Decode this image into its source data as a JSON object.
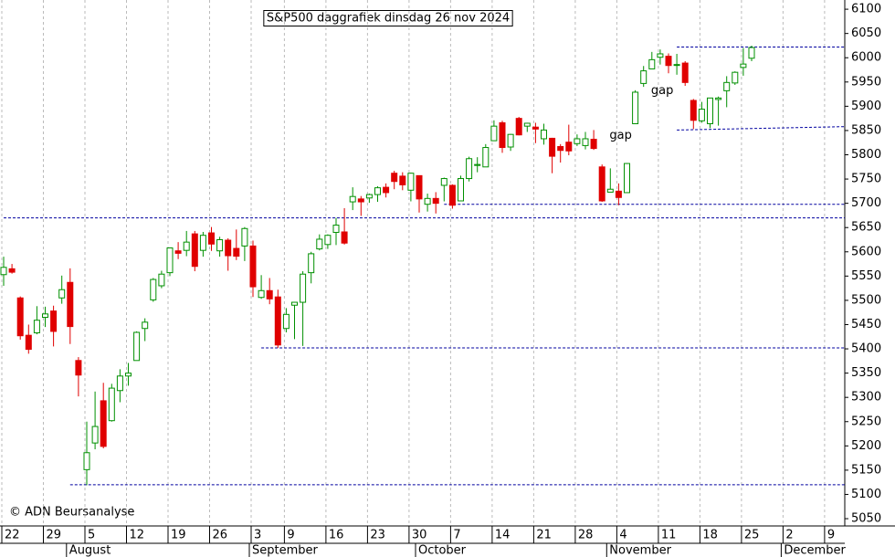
{
  "chart_data": {
    "type": "candlestick",
    "title": "S&P500 daggrafiek dinsdag 26 nov 2024",
    "copyright": "© ADN Beursanalyse",
    "categories": [
      "22",
      null,
      null,
      null,
      null,
      "29",
      null,
      null,
      null,
      null,
      "5",
      null,
      null,
      null,
      null,
      "12",
      null,
      null,
      null,
      null,
      "19",
      null,
      null,
      null,
      null,
      "26",
      null,
      null,
      null,
      null,
      "3",
      null,
      null,
      null,
      "9",
      null,
      null,
      null,
      null,
      "16",
      null,
      null,
      null,
      null,
      "23",
      null,
      null,
      null,
      null,
      "30",
      null,
      null,
      null,
      null,
      "7",
      null,
      null,
      null,
      null,
      "14",
      null,
      null,
      null,
      null,
      "21",
      null,
      null,
      null,
      null,
      "28",
      null,
      null,
      null,
      null,
      "4",
      null,
      null,
      null,
      null,
      "11",
      null,
      null,
      null,
      null,
      "18",
      null,
      null,
      null,
      null,
      "25",
      null,
      null,
      null,
      null,
      "2",
      null,
      null,
      null,
      null,
      "9",
      null,
      null
    ],
    "months": [
      {
        "label": "August",
        "index": 8
      },
      {
        "label": "September",
        "index": 30
      },
      {
        "label": "October",
        "index": 50
      },
      {
        "label": "November",
        "index": 73
      },
      {
        "label": "December",
        "index": 94
      }
    ],
    "open": [
      5553,
      5565,
      5505,
      5428,
      5433,
      5465,
      5478,
      5505,
      5537,
      5376,
      5151,
      5206,
      5293,
      5252,
      5314,
      5344,
      5376,
      5442,
      5501,
      5530,
      5557,
      5602,
      5603,
      5637,
      5603,
      5639,
      5602,
      5624,
      5607,
      5612,
      5612,
      5506,
      5520,
      5507,
      5442,
      5490,
      5496,
      5557,
      5606,
      5615,
      5640,
      5641,
      5703,
      5709,
      5711,
      5718,
      5733,
      5762,
      5756,
      5727,
      5757,
      5698,
      5710,
      5737,
      5737,
      5705,
      5751,
      5778,
      5775,
      5829,
      5866,
      5816,
      5875,
      5859,
      5857,
      5833,
      5834,
      5817,
      5826,
      5823,
      5819,
      5832,
      5775,
      5723,
      5725,
      5722,
      5864,
      5947,
      5977,
      6001,
      6003,
      5985,
      5989,
      5912,
      5870,
      5864,
      5914,
      5932,
      5948,
      5980,
      5999,
      null,
      null,
      null,
      null,
      null,
      null,
      null,
      null,
      null,
      null,
      null
    ],
    "high": [
      5590,
      5575,
      5508,
      5450,
      5488,
      5487,
      5489,
      5551,
      5566,
      5383,
      5250,
      5312,
      5330,
      5328,
      5358,
      5371,
      5436,
      5463,
      5546,
      5561,
      5608,
      5620,
      5643,
      5643,
      5641,
      5651,
      5631,
      5628,
      5646,
      5651,
      5623,
      5552,
      5546,
      5522,
      5484,
      5497,
      5560,
      5600,
      5636,
      5636,
      5670,
      5690,
      5733,
      5715,
      5720,
      5735,
      5741,
      5767,
      5764,
      5763,
      5757,
      5720,
      5723,
      5753,
      5739,
      5757,
      5796,
      5795,
      5822,
      5871,
      5870,
      5843,
      5878,
      5866,
      5866,
      5864,
      5835,
      5822,
      5862,
      5842,
      5847,
      5851,
      5780,
      5772,
      5741,
      5783,
      5933,
      5983,
      6012,
      6017,
      6009,
      6008,
      5993,
      5915,
      5909,
      5917,
      5920,
      5962,
      5972,
      6020,
      6025,
      null,
      null,
      null,
      null,
      null,
      null,
      null,
      null,
      null,
      null,
      null
    ],
    "low": [
      5530,
      5555,
      5419,
      5390,
      5430,
      5445,
      5405,
      5493,
      5410,
      5302,
      5119,
      5193,
      5195,
      5250,
      5290,
      5324,
      5376,
      5416,
      5497,
      5525,
      5550,
      5585,
      5591,
      5560,
      5590,
      5602,
      5590,
      5561,
      5583,
      5581,
      5507,
      5503,
      5492,
      5402,
      5434,
      5420,
      5406,
      5535,
      5603,
      5606,
      5614,
      5615,
      5686,
      5674,
      5701,
      5703,
      5712,
      5729,
      5727,
      5704,
      5681,
      5683,
      5679,
      5704,
      5689,
      5704,
      5745,
      5764,
      5775,
      5829,
      5804,
      5808,
      5840,
      5847,
      5824,
      5821,
      5762,
      5784,
      5799,
      5818,
      5811,
      5810,
      5703,
      5723,
      5696,
      5722,
      5864,
      5940,
      5977,
      5986,
      5968,
      5965,
      5942,
      5853,
      5866,
      5855,
      5860,
      5898,
      5944,
      5963,
      5993,
      null,
      null,
      null,
      null,
      null,
      null,
      null,
      null,
      null,
      null,
      null
    ],
    "close": [
      5568,
      5558,
      5427,
      5399,
      5459,
      5472,
      5436,
      5522,
      5446,
      5346,
      5186,
      5240,
      5199,
      5319,
      5344,
      5350,
      5434,
      5455,
      5543,
      5554,
      5608,
      5597,
      5620,
      5570,
      5634,
      5616,
      5625,
      5592,
      5591,
      5648,
      5528,
      5520,
      5503,
      5408,
      5471,
      5496,
      5554,
      5596,
      5626,
      5634,
      5655,
      5618,
      5714,
      5703,
      5718,
      5732,
      5722,
      5745,
      5738,
      5762,
      5709,
      5710,
      5700,
      5751,
      5696,
      5751,
      5792,
      5780,
      5815,
      5859,
      5815,
      5842,
      5841,
      5865,
      5853,
      5851,
      5797,
      5809,
      5808,
      5833,
      5833,
      5813,
      5705,
      5729,
      5712,
      5782,
      5929,
      5973,
      5996,
      6008,
      5984,
      5986,
      5949,
      5871,
      5894,
      5917,
      5917,
      5949,
      5970,
      5987,
      6021,
      null,
      null,
      null,
      null,
      null,
      null,
      null,
      null,
      null,
      null,
      null
    ],
    "up_color": "#009000",
    "down_color": "#e00000",
    "ylim": [
      5035,
      6119
    ],
    "yticks": [
      5050,
      5100,
      5150,
      5200,
      5250,
      5300,
      5350,
      5400,
      5450,
      5500,
      5550,
      5600,
      5650,
      5700,
      5750,
      5800,
      5850,
      5900,
      5950,
      6000,
      6050,
      6100
    ],
    "grid": true,
    "levels": [
      {
        "from": 8,
        "values": [
          5120,
          5120
        ]
      },
      {
        "from": 31,
        "values": [
          5402,
          5402
        ]
      },
      {
        "from": 0,
        "values": [
          5670,
          5670
        ]
      },
      {
        "from": 53,
        "values": [
          5698,
          5698
        ]
      },
      {
        "from": 81,
        "values": [
          5851,
          5858
        ]
      },
      {
        "from": 81,
        "values": [
          6022,
          6022
        ]
      }
    ],
    "level_color": "#0000a0",
    "annotations": [
      {
        "text": "gap",
        "index": 74,
        "value": 5840,
        "color": "#000000"
      },
      {
        "text": "gap",
        "index": 79,
        "value": 5932,
        "color": "#b0b0b0"
      }
    ]
  }
}
